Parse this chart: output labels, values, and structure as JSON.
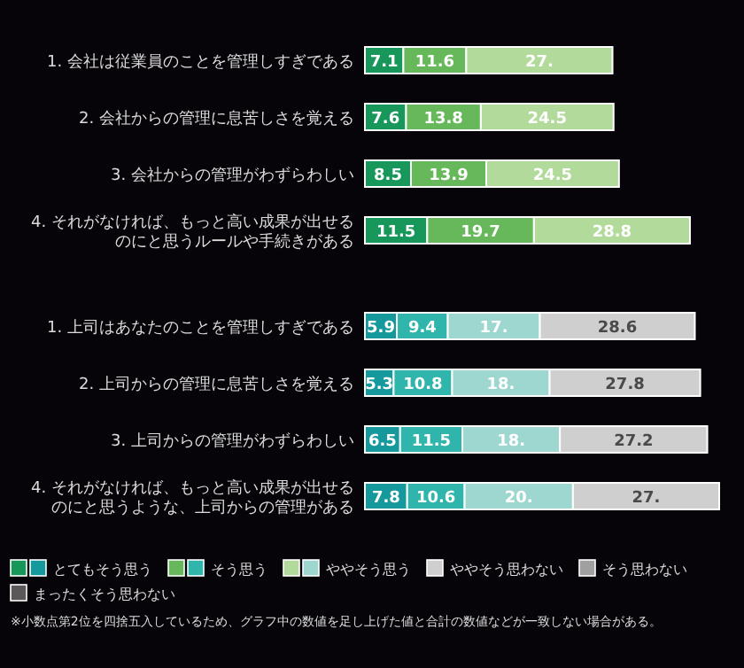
{
  "chart_data": {
    "type": "bar",
    "orientation": "horizontal",
    "stacked": true,
    "legend": "bottom",
    "categories": [
      "1. 会社は従業員のことを管理しすぎである",
      "2. 会社からの管理に息苦しさを覚える",
      "3. 会社からの管理がわずらわしい",
      "4. それがなければ、もっと高い成果が出せるのにと思うルールや手続きがある",
      "1. 上司はあなたのことを管理しすぎである",
      "2. 上司からの管理に息苦しさを覚える",
      "3. 上司からの管理がわずらわしい",
      "4. それがなければ、もっと高い成果が出せるのにと思うような、上司からの管理がある"
    ],
    "series": [
      {
        "name": "とてもそう思う",
        "colors": [
          "#17985a",
          "#17985a",
          "#17985a",
          "#17985a",
          "#15999c",
          "#15999c",
          "#15999c",
          "#15999c"
        ],
        "values": [
          7.1,
          7.6,
          8.5,
          11.5,
          5.9,
          5.3,
          6.5,
          7.8
        ],
        "value_labels": [
          "7.1",
          "7.6",
          "8.5",
          "11.5",
          "5.9",
          "5.3",
          "6.5",
          "7.8"
        ]
      },
      {
        "name": "そう思う",
        "colors": [
          "#66b85a",
          "#66b85a",
          "#66b85a",
          "#66b85a",
          "#2fb5ac",
          "#2fb5ac",
          "#2fb5ac",
          "#2fb5ac"
        ],
        "values": [
          11.6,
          13.8,
          13.9,
          19.7,
          9.4,
          10.8,
          11.5,
          10.6
        ],
        "value_labels": [
          "11.6",
          "13.8",
          "13.9",
          "19.7",
          "9.4",
          "10.8",
          "11.5",
          "10.6"
        ]
      },
      {
        "name": "ややそう思う",
        "colors": [
          "#b2da9a",
          "#b2da9a",
          "#b2da9a",
          "#b2da9a",
          "#9dd7cf",
          "#9dd7cf",
          "#9dd7cf",
          "#9dd7cf"
        ],
        "values": [
          27,
          24.5,
          24.5,
          28.8,
          17,
          18,
          18,
          20
        ],
        "value_labels": [
          "27.",
          "24.5",
          "24.5",
          "28.8",
          "17.",
          "18.",
          "18.",
          "20."
        ]
      },
      {
        "name": "ややそう思わない",
        "color": "#cfcfcf",
        "values": [
          null,
          null,
          null,
          null,
          28.6,
          27.8,
          27.2,
          27
        ],
        "value_labels": [
          null,
          null,
          null,
          null,
          "28.6",
          "27.8",
          "27.2",
          "27."
        ]
      },
      {
        "name": "そう思わない",
        "color": "#a0a0a0",
        "values": [
          null,
          null,
          null,
          null,
          null,
          null,
          null,
          null
        ]
      },
      {
        "name": "まったくそう思わない",
        "color": "#5a5858",
        "values": [
          null,
          null,
          null,
          null,
          null,
          null,
          null,
          null
        ]
      }
    ],
    "annotations": [
      "※小数点第2位を四捨五入しているため、グラフ中の数値を足し上げた値と合計の数値などが一致しない場合がある。"
    ]
  }
}
